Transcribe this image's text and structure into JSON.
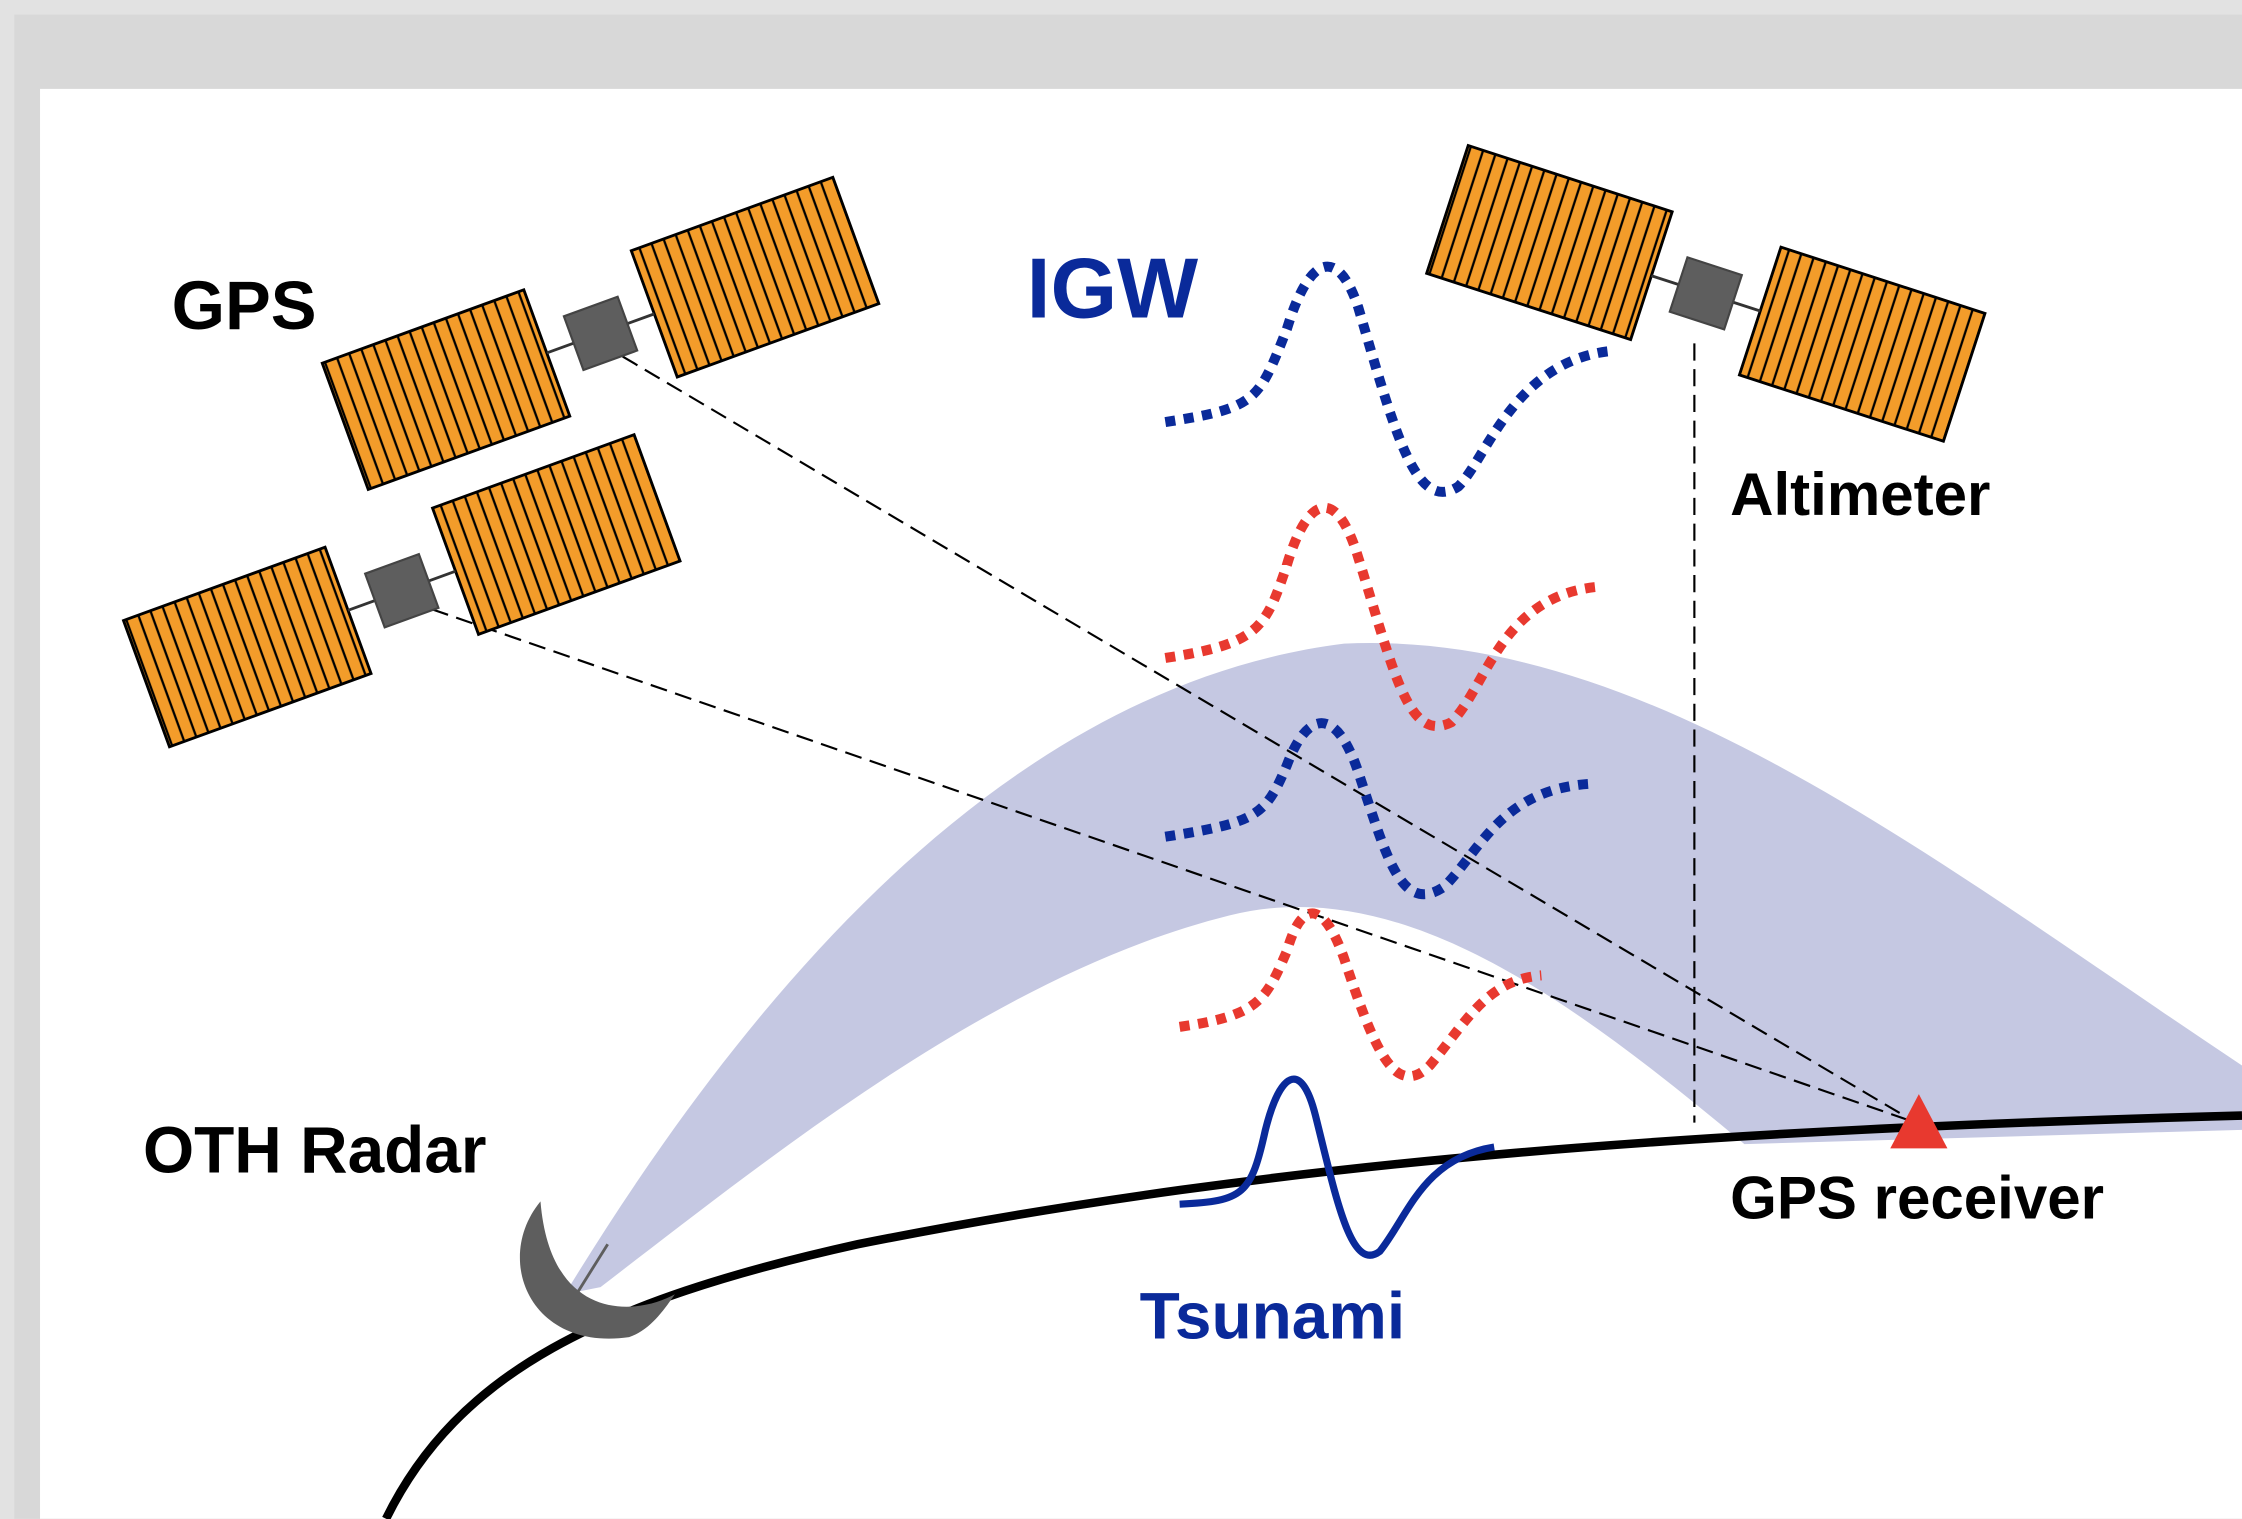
{
  "labels": {
    "gps": "GPS",
    "igw": "IGW",
    "altimeter": "Altimeter",
    "oth_radar": "OTH Radar",
    "tsunami": "Tsunami",
    "gps_receiver": "GPS receiver"
  }
}
